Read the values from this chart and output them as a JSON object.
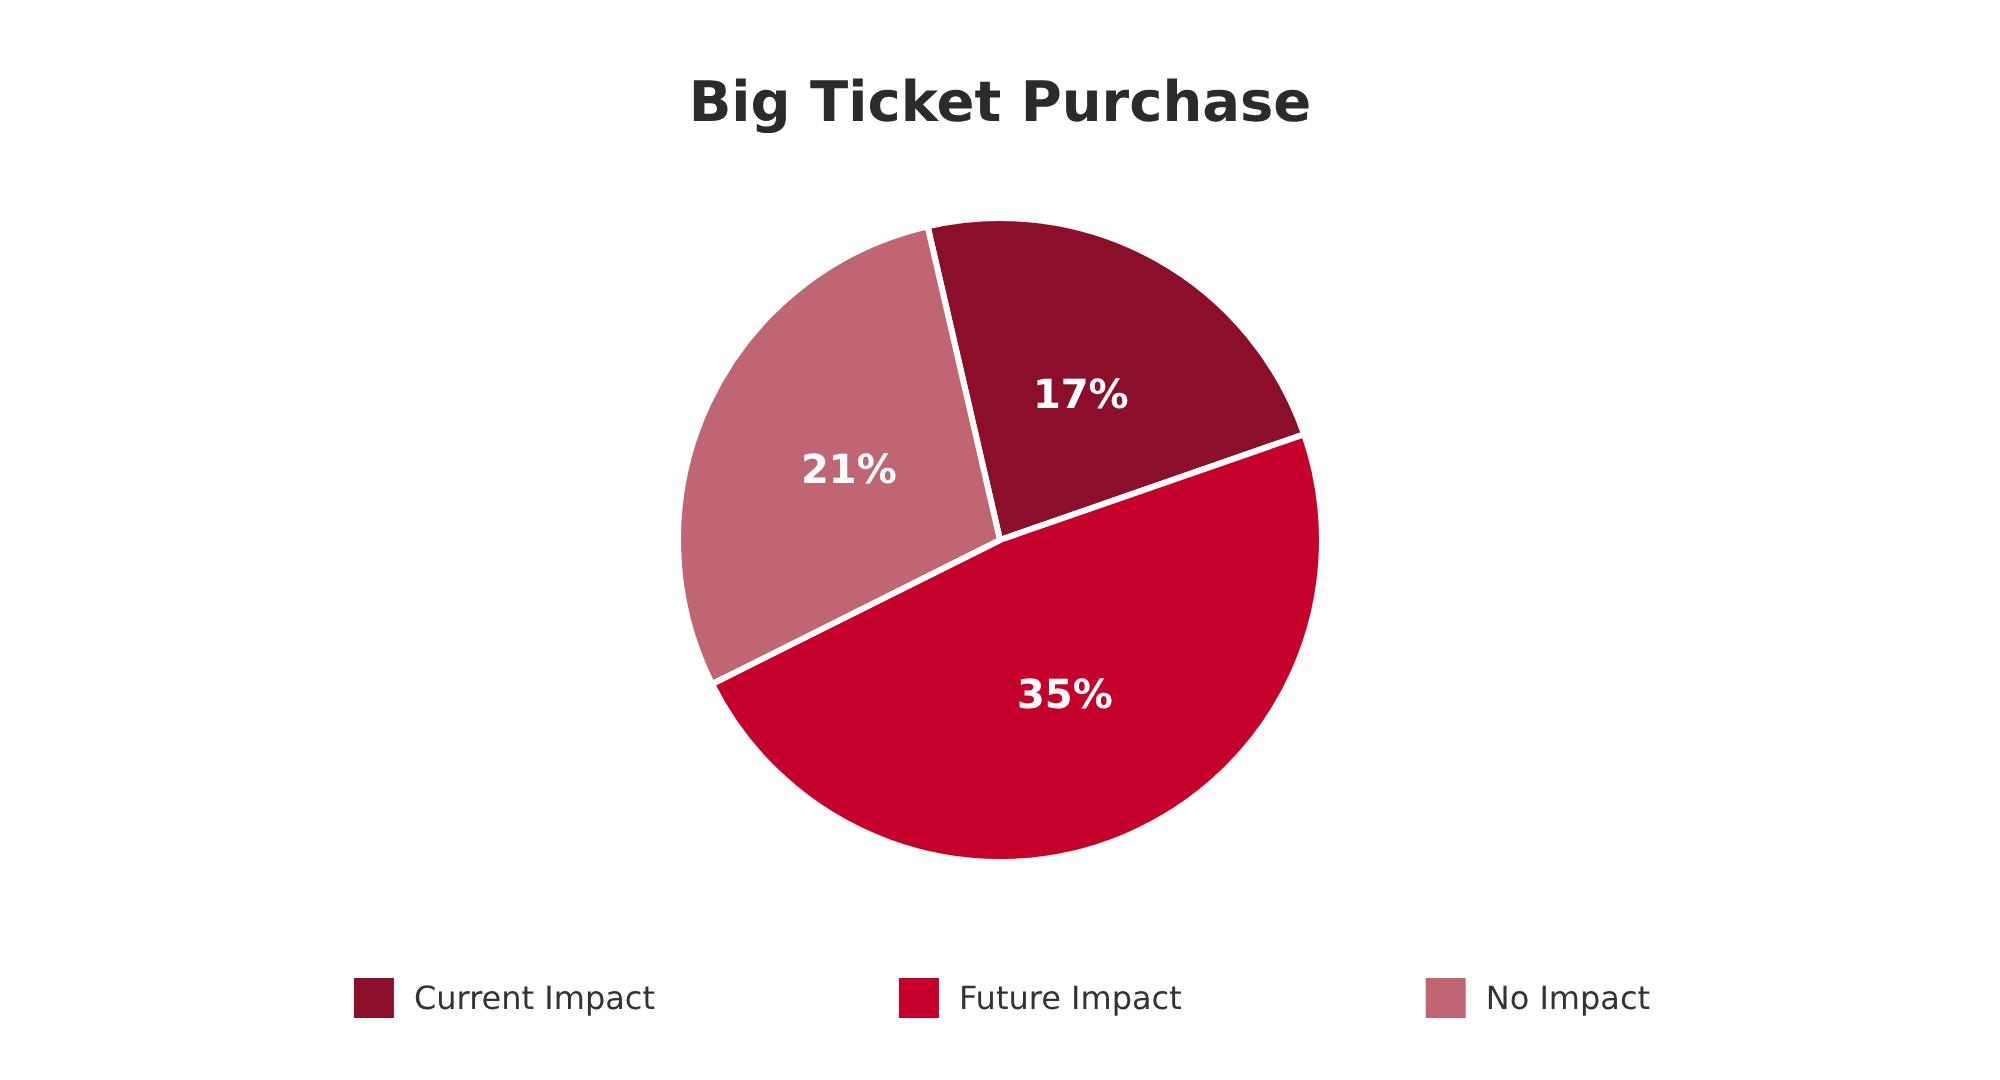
{
  "chart_data": {
    "type": "pie",
    "title": "Big Ticket Purchase",
    "categories": [
      "Current Impact",
      "Future Impact",
      "No Impact"
    ],
    "values": [
      17,
      35,
      21
    ],
    "colors": [
      "#8b0e2a",
      "#c4002b",
      "#c06574"
    ],
    "value_labels": [
      "17%",
      "35%",
      "21%"
    ],
    "legend": "bottom"
  }
}
